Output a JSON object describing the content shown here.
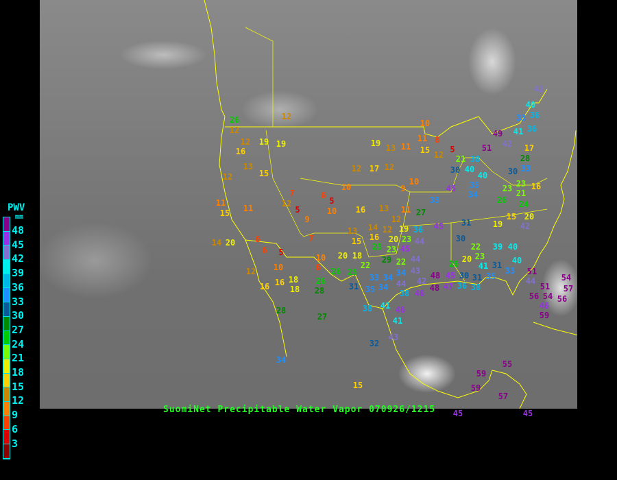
{
  "title": "SuomiNet Precipitable Water Vapor 070926/1215",
  "legend": {
    "title": "PWV",
    "unit": "mm",
    "labels": [
      "48",
      "45",
      "42",
      "39",
      "36",
      "33",
      "30",
      "27",
      "24",
      "21",
      "18",
      "15",
      "12",
      "9",
      "6",
      "3"
    ],
    "colors": [
      "#8b008b",
      "#9a30e8",
      "#8470d0",
      "#00eeee",
      "#00b8e8",
      "#1e90ff",
      "#0a5a9a",
      "#008a00",
      "#00cc00",
      "#7cfc00",
      "#eeee00",
      "#ffd000",
      "#cc8800",
      "#ff8000",
      "#ff4000",
      "#dd0000",
      "#8b0000"
    ]
  },
  "map": {
    "background": "satellite infrared imagery (grayscale)",
    "border_color": "#ffff00",
    "station_values": [
      26,
      12,
      12,
      16,
      19,
      19,
      12,
      13,
      15,
      12,
      11,
      15,
      11,
      7,
      12,
      5,
      9,
      6,
      5,
      10,
      7,
      6,
      6,
      5,
      10,
      10,
      6,
      12,
      16,
      16,
      18,
      18,
      14,
      20,
      20,
      18,
      22,
      25,
      26,
      26,
      28,
      28,
      27,
      31,
      33,
      34,
      35,
      34,
      44,
      38,
      41,
      38,
      46,
      41,
      43,
      32,
      15,
      34,
      12,
      10,
      19,
      13,
      11,
      17,
      12,
      9,
      10,
      16,
      13,
      11,
      27,
      12,
      13,
      15,
      14,
      16,
      12,
      19,
      20,
      25,
      23,
      23,
      29,
      22,
      34,
      45,
      44,
      36,
      44,
      43,
      42,
      48,
      46,
      48,
      47,
      45,
      36,
      10,
      11,
      8,
      12,
      15,
      5,
      21,
      38,
      30,
      40,
      40,
      35,
      34,
      45,
      33,
      45,
      31,
      30,
      22,
      23,
      20,
      26,
      41,
      30,
      31,
      38,
      35,
      31,
      33,
      39,
      40,
      40,
      19,
      15,
      42,
      20,
      24,
      26,
      23,
      23,
      16,
      30,
      28,
      17,
      33,
      21,
      49,
      51,
      42,
      41,
      36,
      33,
      36,
      40,
      42,
      44,
      51,
      51,
      54,
      46,
      56,
      56,
      59,
      54,
      57,
      55,
      59,
      59,
      57,
      45,
      45
    ]
  }
}
